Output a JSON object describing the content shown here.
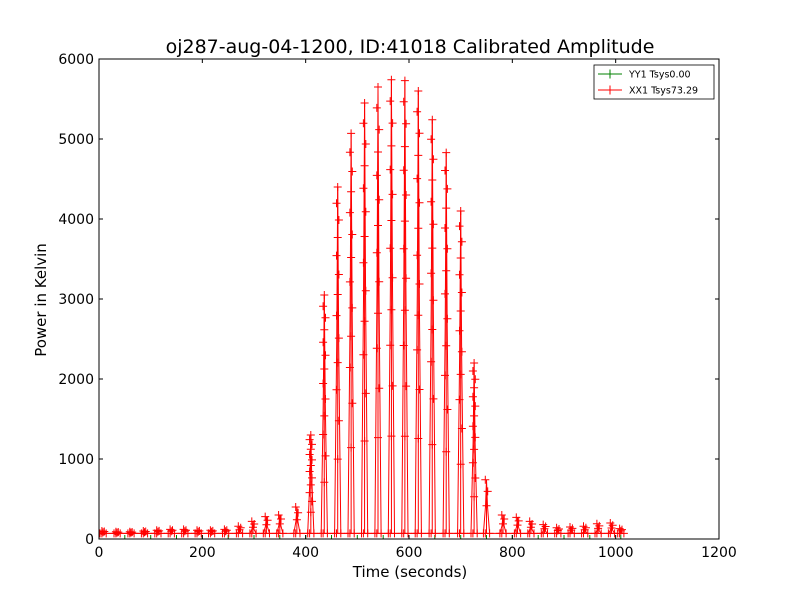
{
  "chart_data": {
    "type": "line",
    "title": "oj287-aug-04-1200, ID:41018 Calibrated Amplitude",
    "xlabel": "Time (seconds)",
    "ylabel": "Power in Kelvin",
    "xlim": [
      0,
      1200
    ],
    "ylim": [
      0,
      6000
    ],
    "xticks": [
      0,
      200,
      400,
      600,
      800,
      1000,
      1200
    ],
    "yticks": [
      0,
      1000,
      2000,
      3000,
      4000,
      5000,
      6000
    ],
    "grid": false,
    "legend_position": "top-right",
    "series": [
      {
        "name": "YY1 Tsys0.00",
        "color": "#008000",
        "marker": "+",
        "x": [
          0,
          50,
          100,
          150,
          200,
          250,
          300,
          350,
          400,
          450,
          500,
          550,
          600,
          650,
          700,
          750,
          800,
          850,
          900,
          950,
          1010
        ],
        "values": [
          0,
          0,
          0,
          0,
          0,
          0,
          0,
          0,
          0,
          0,
          0,
          0,
          0,
          0,
          0,
          0,
          0,
          0,
          0,
          0,
          0
        ]
      },
      {
        "name": "XX1 Tsys73.29",
        "color": "#ff0000",
        "marker": "+",
        "scan_times": [
          8,
          35,
          62,
          88,
          114,
          140,
          166,
          192,
          218,
          245,
          272,
          298,
          324,
          350,
          383,
          410,
          436,
          462,
          488,
          514,
          540,
          566,
          592,
          618,
          645,
          672,
          700,
          726,
          750,
          782,
          810,
          836,
          862,
          888,
          914,
          940,
          966,
          992,
          1010
        ],
        "scan_peaks": [
          100,
          90,
          90,
          100,
          110,
          120,
          120,
          110,
          110,
          120,
          160,
          220,
          280,
          300,
          400,
          1300,
          3050,
          4400,
          5070,
          5450,
          5650,
          5740,
          5730,
          5600,
          5240,
          4830,
          4100,
          2200,
          740,
          300,
          270,
          220,
          180,
          140,
          150,
          160,
          190,
          200,
          130
        ],
        "baseline": 70
      }
    ]
  }
}
